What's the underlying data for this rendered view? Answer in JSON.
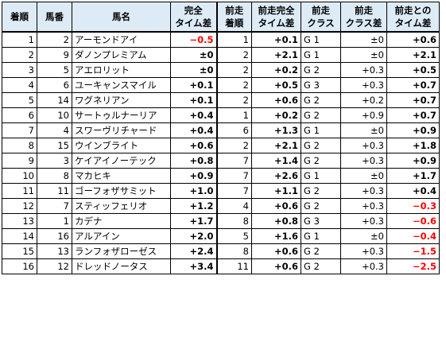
{
  "colors": {
    "header_bg": "#ddebf7",
    "negative": "#ff0000",
    "border": "#000000"
  },
  "table": {
    "headers": [
      {
        "line1": "着順",
        "line2": ""
      },
      {
        "line1": "馬番",
        "line2": ""
      },
      {
        "line1": "馬名",
        "line2": ""
      },
      {
        "line1": "完全",
        "line2": "タイム差"
      },
      {
        "line1": "前走",
        "line2": "着順"
      },
      {
        "line1": "前走完全",
        "line2": "タイム差"
      },
      {
        "line1": "前走",
        "line2": "クラス"
      },
      {
        "line1": "前走",
        "line2": "クラス差"
      },
      {
        "line1": "前走との",
        "line2": "タイム差"
      }
    ],
    "rows": [
      [
        "1",
        "2",
        "アーモンドアイ",
        "−0.5",
        "1",
        "+0.1",
        "G 1",
        "±0",
        "+0.6"
      ],
      [
        "2",
        "9",
        "ダノンプレミアム",
        "±0",
        "2",
        "+2.1",
        "G 1",
        "±0",
        "+2.1"
      ],
      [
        "3",
        "5",
        "アエロリット",
        "±0",
        "2",
        "+0.2",
        "G 2",
        "+0.3",
        "+0.5"
      ],
      [
        "4",
        "6",
        "ユーキャンスマイル",
        "+0.1",
        "2",
        "+0.5",
        "G 3",
        "+0.3",
        "+0.7"
      ],
      [
        "5",
        "14",
        "ワグネリアン",
        "+0.1",
        "2",
        "+0.6",
        "G 2",
        "+0.2",
        "+0.7"
      ],
      [
        "6",
        "10",
        "サートゥルナーリア",
        "+0.4",
        "1",
        "+0.2",
        "G 2",
        "+0.9",
        "+0.7"
      ],
      [
        "7",
        "4",
        "スワーヴリチャード",
        "+0.4",
        "6",
        "+1.3",
        "G 1",
        "±0",
        "+0.9"
      ],
      [
        "8",
        "15",
        "ウインブライト",
        "+0.6",
        "2",
        "+2.1",
        "G 2",
        "+0.3",
        "+1.8"
      ],
      [
        "9",
        "3",
        "ケイアイノーテック",
        "+0.8",
        "7",
        "+1.4",
        "G 2",
        "+0.3",
        "+0.9"
      ],
      [
        "10",
        "8",
        "マカヒキ",
        "+0.9",
        "7",
        "+2.6",
        "G 1",
        "±0",
        "+1.7"
      ],
      [
        "11",
        "11",
        "ゴーフォザサミット",
        "+1.0",
        "7",
        "+1.1",
        "G 2",
        "+0.3",
        "+0.4"
      ],
      [
        "12",
        "7",
        "スティッフェリオ",
        "+1.2",
        "4",
        "+0.6",
        "G 2",
        "+0.3",
        "−0.3"
      ],
      [
        "13",
        "1",
        "カデナ",
        "+1.7",
        "8",
        "+0.8",
        "G 3",
        "+0.3",
        "−0.6"
      ],
      [
        "14",
        "16",
        "アルアイン",
        "+2.0",
        "5",
        "+1.6",
        "G 1",
        "±0",
        "−0.4"
      ],
      [
        "15",
        "13",
        "ランフォザローゼス",
        "+2.4",
        "8",
        "+0.6",
        "G 2",
        "+0.3",
        "−1.5"
      ],
      [
        "16",
        "12",
        "ドレッドノータス",
        "+3.4",
        "11",
        "+0.6",
        "G 2",
        "+0.3",
        "−2.5"
      ]
    ]
  }
}
